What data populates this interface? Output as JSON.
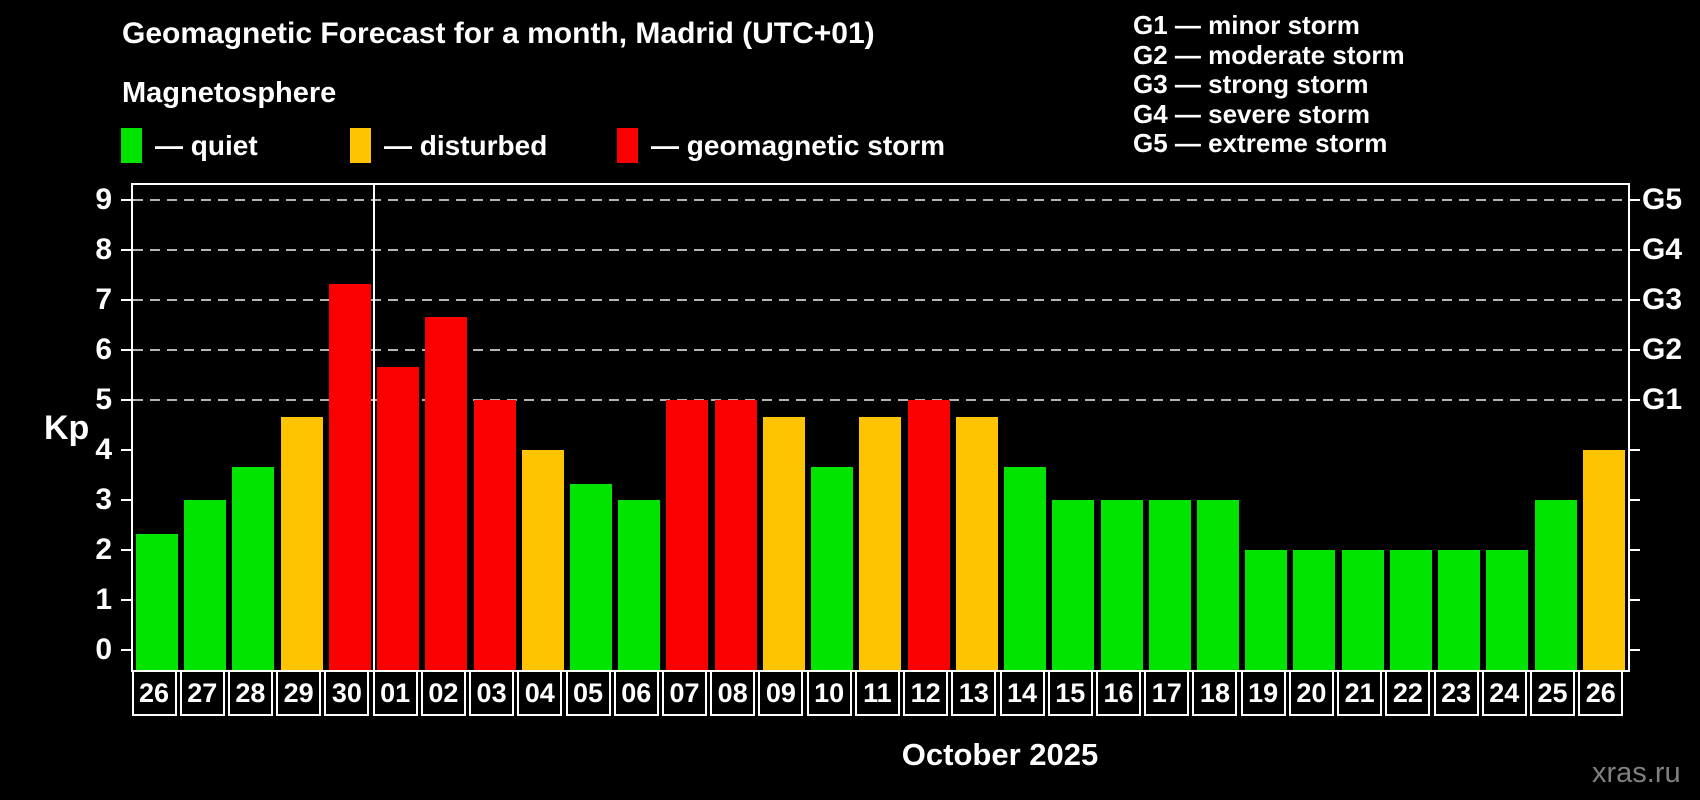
{
  "title": "Geomagnetic Forecast for a month, Madrid (UTC+01)",
  "subtitle": "Magnetosphere",
  "legend": {
    "items": [
      {
        "label": "— quiet",
        "status": "quiet",
        "color": "#00e400"
      },
      {
        "label": "— disturbed",
        "status": "disturbed",
        "color": "#ffc400"
      },
      {
        "label": "— geomagnetic storm",
        "status": "storm",
        "color": "#fa0000"
      }
    ]
  },
  "g_legend": {
    "lines": [
      "G1 — minor storm",
      "G2 — moderate storm",
      "G3 — strong storm",
      "G4 — severe storm",
      "G5 — extreme storm"
    ]
  },
  "axis": {
    "ylabel": "Kp",
    "yticks": [
      0,
      1,
      2,
      3,
      4,
      5,
      6,
      7,
      8,
      9
    ],
    "grid_kp": [
      5,
      6,
      7,
      8,
      9
    ],
    "right_labels": [
      {
        "kp": 5,
        "text": "G1"
      },
      {
        "kp": 6,
        "text": "G2"
      },
      {
        "kp": 7,
        "text": "G3"
      },
      {
        "kp": 8,
        "text": "G4"
      },
      {
        "kp": 9,
        "text": "G5"
      }
    ]
  },
  "chart_data": {
    "type": "bar",
    "title": "Geomagnetic Forecast for a month, Madrid (UTC+01)",
    "ylabel": "Kp",
    "ylim": [
      0,
      9
    ],
    "grid": "horizontal dashed lines at Kp 5-9 (G1-G5)",
    "legend_position": "top-left swatches, G-scale top-right",
    "categories": [
      "26",
      "27",
      "28",
      "29",
      "30",
      "01",
      "02",
      "03",
      "04",
      "05",
      "06",
      "07",
      "08",
      "09",
      "10",
      "11",
      "12",
      "13",
      "14",
      "15",
      "16",
      "17",
      "18",
      "19",
      "20",
      "21",
      "22",
      "23",
      "24",
      "25",
      "26"
    ],
    "values": [
      2.33,
      3,
      3.67,
      4.67,
      7.33,
      5.67,
      6.67,
      5,
      4,
      3.33,
      3,
      5,
      5,
      4.67,
      3.67,
      4.67,
      5,
      4.67,
      3.67,
      3,
      3,
      3,
      3,
      2,
      2,
      2,
      2,
      2,
      2,
      3,
      4
    ],
    "statuses": [
      "quiet",
      "quiet",
      "quiet",
      "disturbed",
      "storm",
      "storm",
      "storm",
      "storm",
      "disturbed",
      "quiet",
      "quiet",
      "storm",
      "storm",
      "disturbed",
      "quiet",
      "disturbed",
      "storm",
      "disturbed",
      "quiet",
      "quiet",
      "quiet",
      "quiet",
      "quiet",
      "quiet",
      "quiet",
      "quiet",
      "quiet",
      "quiet",
      "quiet",
      "quiet",
      "disturbed"
    ],
    "month_boundary_after_index": 4
  },
  "footer": {
    "month_label": "October 2025",
    "watermark": "xras.ru"
  },
  "colors": {
    "quiet": "#00e400",
    "disturbed": "#ffc400",
    "storm": "#fa0000",
    "background": "#000000",
    "grid": "#b4b4b4"
  }
}
